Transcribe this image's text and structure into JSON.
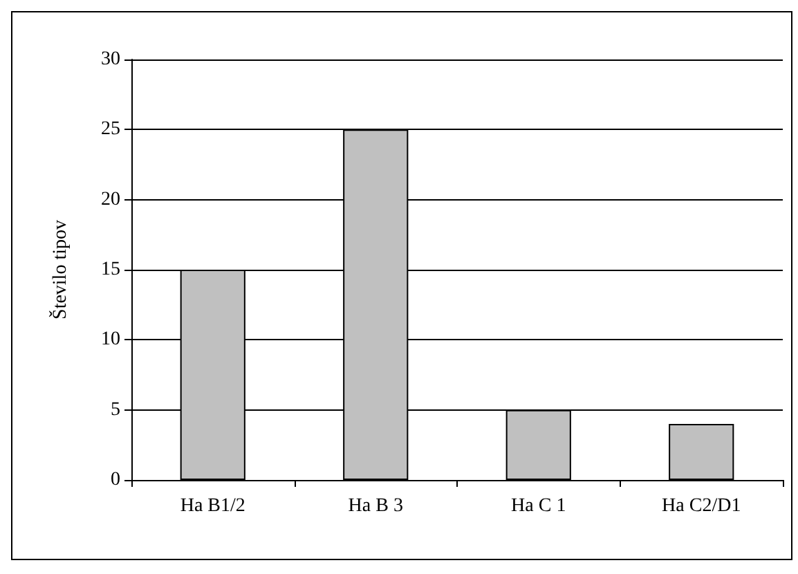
{
  "chart_data": {
    "type": "bar",
    "ylabel": "Število tipov",
    "categories": [
      "Ha B1/2",
      "Ha B 3",
      "Ha C 1",
      "Ha C2/D1"
    ],
    "values": [
      15,
      25,
      5,
      4
    ],
    "color": "#c0c0c0",
    "ylim": [
      0,
      30
    ],
    "yticks": [
      0,
      5,
      10,
      15,
      20,
      25,
      30
    ],
    "grid": "y"
  }
}
